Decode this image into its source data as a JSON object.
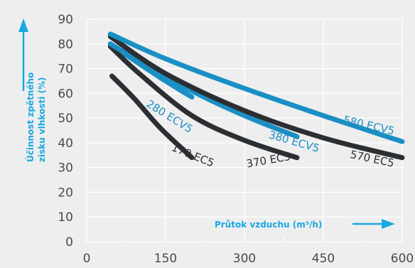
{
  "chart_data": {
    "type": "line",
    "title": "",
    "xlabel": "Průtok vzduchu (m³/h)",
    "ylabel_line1": "Účinnost zpětného",
    "ylabel_line2": "zisku vlhkosti (%)",
    "xlim": [
      0,
      600
    ],
    "ylim": [
      0,
      90
    ],
    "x_ticks": [
      "0",
      "150",
      "300",
      "450",
      "600"
    ],
    "y_ticks": [
      "0",
      "10",
      "20",
      "30",
      "40",
      "50",
      "60",
      "70",
      "80",
      "90"
    ],
    "grid": true,
    "legend": "inline labels",
    "colors": {
      "dark": "#2b2f33",
      "blue": "#1b8fc4",
      "accent": "#19a9e1",
      "grid": "#ffffff"
    },
    "series": [
      {
        "name": "170 EC5",
        "color": "#2b2f33",
        "x": [
          48,
          90,
          140,
          200
        ],
        "y": [
          67,
          58,
          46,
          34
        ]
      },
      {
        "name": "280 ECV5",
        "color": "#1b8fc4",
        "x": [
          45,
          100,
          150,
          200
        ],
        "y": [
          80,
          72,
          65,
          58.5
        ]
      },
      {
        "name": "370 EC5",
        "color": "#2b2f33",
        "x": [
          45,
          100,
          200,
          300,
          400
        ],
        "y": [
          79,
          68,
          51,
          41,
          34
        ]
      },
      {
        "name": "380 ECV5",
        "color": "#1b8fc4",
        "x": [
          45,
          100,
          200,
          300,
          400
        ],
        "y": [
          80,
          73,
          61,
          51,
          42.5
        ]
      },
      {
        "name": "570 EC5",
        "color": "#2b2f33",
        "x": [
          45,
          150,
          300,
          450,
          600
        ],
        "y": [
          83,
          68,
          53,
          42,
          34
        ]
      },
      {
        "name": "580 ECV5",
        "color": "#1b8fc4",
        "x": [
          45,
          150,
          300,
          450,
          600
        ],
        "y": [
          84,
          74,
          62,
          51,
          40.5
        ]
      }
    ]
  }
}
